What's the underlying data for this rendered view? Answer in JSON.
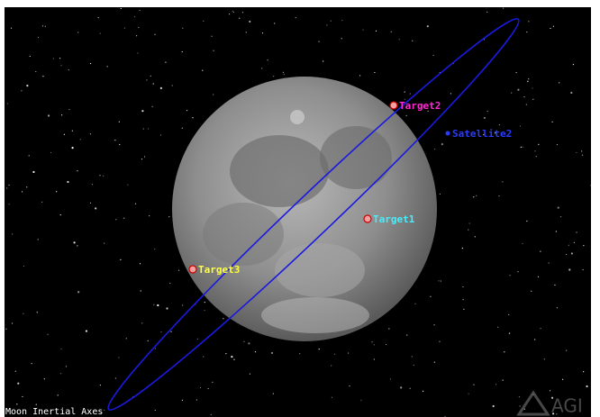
{
  "view": {
    "objects": [
      {
        "label": "Target2"
      },
      {
        "label": "Satellite2"
      },
      {
        "label": "Target1"
      },
      {
        "label": "Target3"
      }
    ],
    "frame_label": "Moon Inertial Axes",
    "logo": "AGI"
  }
}
